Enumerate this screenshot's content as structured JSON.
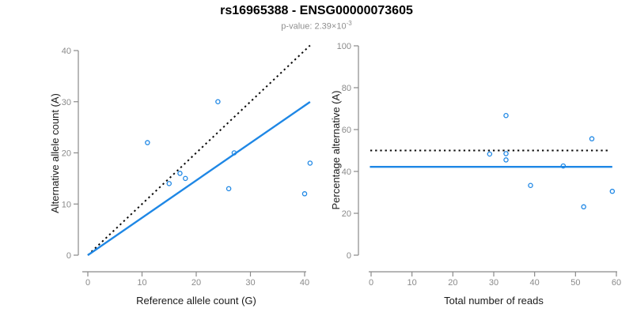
{
  "header": {
    "title": "rs16965388 - ENSG00000073605",
    "subtitle_prefix": "p-value: 2.39×10",
    "subtitle_exponent": "-3"
  },
  "colors": {
    "point_blue": "#1e87e5",
    "fit_blue": "#1e87e5",
    "dotted_black": "#0a0a0a",
    "axis_gray": "#8a8a8a",
    "tick_label_gray": "#8a8a8a",
    "axis_title_black": "#1a1a1a"
  },
  "chart_data": [
    {
      "type": "scatter",
      "xlabel": "Reference allele count (G)",
      "ylabel": "Alternative allele count (A)",
      "xlim": [
        0,
        40
      ],
      "ylim": [
        0,
        40
      ],
      "xticks": [
        0,
        10,
        20,
        30,
        40
      ],
      "yticks": [
        0,
        10,
        20,
        30,
        40
      ],
      "grid": false,
      "points": [
        [
          11,
          22
        ],
        [
          15,
          14
        ],
        [
          17,
          16
        ],
        [
          18,
          15
        ],
        [
          24,
          30
        ],
        [
          26,
          13
        ],
        [
          27,
          20
        ],
        [
          40,
          12
        ],
        [
          41,
          18
        ]
      ],
      "lines": [
        {
          "name": "identity-line",
          "style": "dotted",
          "color": "dotted_black",
          "points": [
            [
              0,
              0
            ],
            [
              41,
              41
            ]
          ]
        },
        {
          "name": "regression-line",
          "style": "solid",
          "color": "fit_blue",
          "points": [
            [
              0,
              0
            ],
            [
              41,
              29.96
            ]
          ]
        }
      ]
    },
    {
      "type": "scatter",
      "xlabel": "Total number of reads",
      "ylabel": "Percentage alternative (A)",
      "xlim": [
        0,
        60
      ],
      "ylim": [
        0,
        100
      ],
      "xticks": [
        0,
        10,
        20,
        30,
        40,
        50,
        60
      ],
      "yticks": [
        0,
        20,
        40,
        60,
        80,
        100
      ],
      "grid": false,
      "points": [
        [
          29,
          48.3
        ],
        [
          33,
          45.5
        ],
        [
          33,
          48.5
        ],
        [
          33,
          66.7
        ],
        [
          39,
          33.3
        ],
        [
          47,
          42.6
        ],
        [
          52,
          23.1
        ],
        [
          54,
          55.6
        ],
        [
          59,
          30.5
        ]
      ],
      "lines": [
        {
          "name": "null-line",
          "style": "dotted",
          "color": "dotted_black",
          "points": [
            [
              -0.2,
              50
            ],
            [
              58.3,
              50
            ]
          ]
        },
        {
          "name": "mean-line",
          "style": "solid",
          "color": "fit_blue",
          "points": [
            [
              -0.3,
              42.2
            ],
            [
              59,
              42.2
            ]
          ]
        }
      ]
    }
  ]
}
